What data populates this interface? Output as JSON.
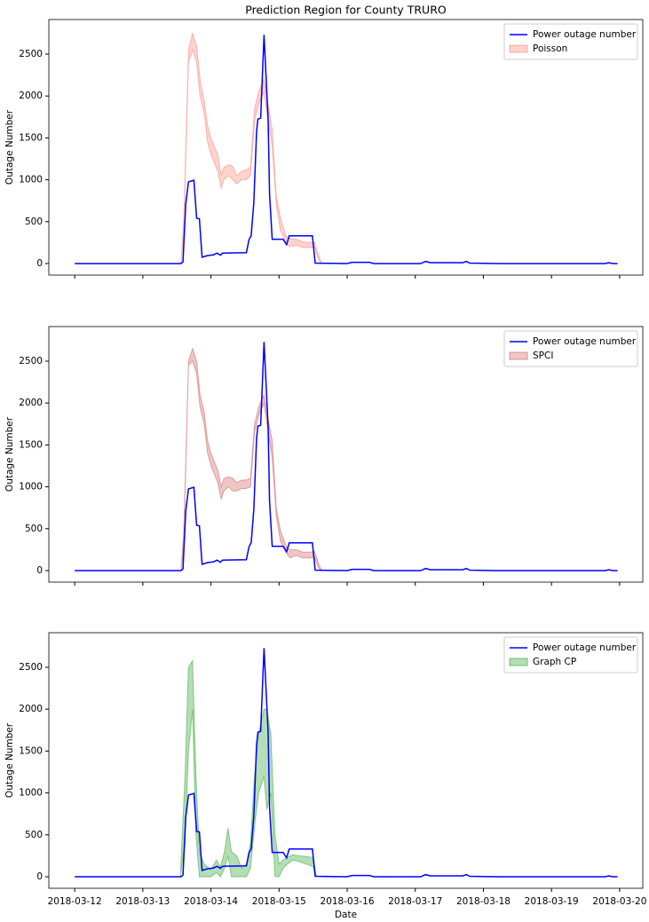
{
  "chart_data": [
    {
      "type": "line",
      "title": "Prediction Region for County TRURO",
      "ylabel": "Outage Number",
      "legend": "upper right",
      "xlim": [
        -0.38,
        8.34
      ],
      "ylim": [
        -138,
        2913
      ],
      "xticks": [
        0,
        1,
        2,
        3,
        4,
        5,
        6,
        7,
        8
      ],
      "yticks": [
        0,
        500,
        1000,
        1500,
        2000,
        2500
      ],
      "series": [
        {
          "name": "Power outage number",
          "color": "#0000ff",
          "x": [
            0,
            1.56,
            1.59,
            1.63,
            1.67,
            1.75,
            1.79,
            1.83,
            1.87,
            1.95,
            2.04,
            2.09,
            2.14,
            2.17,
            2.52,
            2.56,
            2.59,
            2.63,
            2.67,
            2.69,
            2.73,
            2.78,
            2.84,
            2.86,
            2.9,
            3.06,
            3.11,
            3.15,
            3.49,
            3.53,
            4.0,
            4.07,
            4.33,
            4.39,
            5.08,
            5.15,
            5.22,
            5.7,
            5.75,
            5.8,
            6.22,
            7.79,
            7.84,
            7.9,
            7.97
          ],
          "values": [
            0,
            0,
            20,
            710,
            975,
            995,
            540,
            535,
            75,
            95,
            105,
            125,
            100,
            125,
            130,
            290,
            330,
            730,
            1580,
            1725,
            1735,
            2730,
            1720,
            835,
            290,
            290,
            225,
            330,
            330,
            5,
            0,
            15,
            15,
            0,
            0,
            25,
            10,
            10,
            25,
            5,
            0,
            0,
            10,
            0,
            0
          ]
        },
        {
          "name": "Poisson",
          "color": "#fa8072",
          "x": [
            1.56,
            1.6,
            1.67,
            1.73,
            1.79,
            1.84,
            1.9,
            1.95,
            2.0,
            2.05,
            2.1,
            2.15,
            2.19,
            2.26,
            2.32,
            2.38,
            2.45,
            2.52,
            2.58,
            2.64,
            2.7,
            2.78,
            2.84,
            2.9,
            2.96,
            3.02,
            3.1,
            3.16,
            3.25,
            3.35,
            3.45,
            3.52,
            3.58,
            3.62
          ],
          "lower": [
            0,
            300,
            2400,
            2550,
            2400,
            2000,
            1800,
            1450,
            1300,
            1200,
            1100,
            900,
            1000,
            1050,
            1000,
            950,
            1000,
            1000,
            1050,
            1700,
            1900,
            2050,
            1700,
            1400,
            700,
            400,
            250,
            200,
            220,
            190,
            190,
            200,
            50,
            0
          ],
          "upper": [
            0,
            500,
            2550,
            2750,
            2600,
            2200,
            1950,
            1650,
            1500,
            1400,
            1300,
            1050,
            1150,
            1180,
            1160,
            1050,
            1100,
            1120,
            1150,
            1850,
            2050,
            2200,
            1900,
            1600,
            800,
            550,
            330,
            300,
            290,
            260,
            250,
            260,
            100,
            10
          ]
        }
      ]
    },
    {
      "type": "line",
      "ylabel": "Outage Number",
      "legend": "upper right",
      "xlim": [
        -0.38,
        8.34
      ],
      "ylim": [
        -138,
        2913
      ],
      "xticks": [
        0,
        1,
        2,
        3,
        4,
        5,
        6,
        7,
        8
      ],
      "yticks": [
        0,
        500,
        1000,
        1500,
        2000,
        2500
      ],
      "series": [
        {
          "name": "Power outage number",
          "color": "#0000ff",
          "x": [
            0,
            1.56,
            1.59,
            1.63,
            1.67,
            1.75,
            1.79,
            1.83,
            1.87,
            1.95,
            2.04,
            2.09,
            2.14,
            2.17,
            2.52,
            2.56,
            2.59,
            2.63,
            2.67,
            2.69,
            2.73,
            2.78,
            2.84,
            2.86,
            2.9,
            3.06,
            3.11,
            3.15,
            3.49,
            3.53,
            4.0,
            4.07,
            4.33,
            4.39,
            5.08,
            5.15,
            5.22,
            5.7,
            5.75,
            5.8,
            6.22,
            7.79,
            7.84,
            7.9,
            7.97
          ],
          "values": [
            0,
            0,
            20,
            710,
            975,
            995,
            540,
            535,
            75,
            95,
            105,
            125,
            100,
            125,
            130,
            290,
            330,
            730,
            1580,
            1725,
            1735,
            2730,
            1720,
            835,
            290,
            290,
            225,
            330,
            330,
            5,
            0,
            15,
            15,
            0,
            0,
            25,
            10,
            10,
            25,
            5,
            0,
            0,
            10,
            0,
            0
          ]
        },
        {
          "name": "SPCI",
          "color": "#cd5c5c",
          "x": [
            1.56,
            1.6,
            1.67,
            1.73,
            1.79,
            1.84,
            1.9,
            1.95,
            2.0,
            2.05,
            2.1,
            2.15,
            2.19,
            2.26,
            2.32,
            2.38,
            2.45,
            2.52,
            2.58,
            2.64,
            2.7,
            2.78,
            2.84,
            2.9,
            2.96,
            3.02,
            3.1,
            3.16,
            3.25,
            3.35,
            3.45,
            3.52,
            3.58,
            3.62
          ],
          "lower": [
            0,
            250,
            2450,
            2500,
            2350,
            1950,
            1750,
            1400,
            1250,
            1150,
            1050,
            850,
            950,
            1000,
            950,
            950,
            980,
            980,
            1000,
            1650,
            1850,
            2000,
            1650,
            1350,
            650,
            350,
            220,
            150,
            180,
            150,
            150,
            160,
            30,
            0
          ],
          "upper": [
            0,
            450,
            2500,
            2650,
            2500,
            2100,
            1900,
            1550,
            1400,
            1300,
            1200,
            1000,
            1100,
            1120,
            1100,
            1050,
            1080,
            1080,
            1100,
            1750,
            1950,
            2100,
            1800,
            1550,
            750,
            480,
            300,
            250,
            250,
            220,
            220,
            230,
            80,
            5
          ]
        }
      ]
    },
    {
      "type": "line",
      "xlabel": "Date",
      "ylabel": "Outage Number",
      "legend": "upper right",
      "xlim": [
        -0.38,
        8.34
      ],
      "ylim": [
        -138,
        2913
      ],
      "xticks": [
        {
          "value": 0,
          "label": "2018-03-12"
        },
        {
          "value": 1,
          "label": "2018-03-13"
        },
        {
          "value": 2,
          "label": "2018-03-14"
        },
        {
          "value": 3,
          "label": "2018-03-15"
        },
        {
          "value": 4,
          "label": "2018-03-16"
        },
        {
          "value": 5,
          "label": "2018-03-17"
        },
        {
          "value": 6,
          "label": "2018-03-18"
        },
        {
          "value": 7,
          "label": "2018-03-19"
        },
        {
          "value": 8,
          "label": "2018-03-20"
        }
      ],
      "yticks": [
        0,
        500,
        1000,
        1500,
        2000,
        2500
      ],
      "series": [
        {
          "name": "Power outage number",
          "color": "#0000ff",
          "x": [
            0,
            1.56,
            1.59,
            1.63,
            1.67,
            1.75,
            1.79,
            1.83,
            1.87,
            1.95,
            2.04,
            2.09,
            2.14,
            2.17,
            2.52,
            2.56,
            2.59,
            2.63,
            2.67,
            2.69,
            2.73,
            2.78,
            2.84,
            2.86,
            2.9,
            3.06,
            3.11,
            3.15,
            3.49,
            3.53,
            4.0,
            4.07,
            4.33,
            4.39,
            5.08,
            5.15,
            5.22,
            5.7,
            5.75,
            5.8,
            6.22,
            7.79,
            7.84,
            7.9,
            7.97
          ],
          "values": [
            0,
            0,
            20,
            710,
            975,
            995,
            540,
            535,
            75,
            95,
            105,
            125,
            100,
            125,
            130,
            290,
            330,
            730,
            1580,
            1725,
            1735,
            2730,
            1720,
            835,
            290,
            290,
            225,
            330,
            330,
            5,
            0,
            15,
            15,
            0,
            0,
            25,
            10,
            10,
            25,
            5,
            0,
            0,
            10,
            0,
            0
          ]
        },
        {
          "name": "Graph CP",
          "color": "#2ca02c",
          "x": [
            1.55,
            1.62,
            1.67,
            1.73,
            1.78,
            1.83,
            1.9,
            2.0,
            2.08,
            2.14,
            2.2,
            2.25,
            2.3,
            2.38,
            2.45,
            2.52,
            2.58,
            2.64,
            2.7,
            2.78,
            2.82,
            2.88,
            2.94,
            3.0,
            3.06,
            3.12,
            3.2,
            3.3,
            3.4,
            3.5,
            3.55
          ],
          "lower": [
            0,
            400,
            1500,
            2000,
            500,
            0,
            0,
            0,
            50,
            0,
            100,
            250,
            0,
            0,
            0,
            0,
            100,
            600,
            1000,
            1200,
            800,
            1000,
            0,
            0,
            100,
            150,
            200,
            180,
            150,
            120,
            0
          ],
          "upper": [
            0,
            1200,
            2500,
            2580,
            1200,
            300,
            150,
            80,
            200,
            120,
            300,
            580,
            300,
            250,
            100,
            150,
            400,
            1200,
            1700,
            2000,
            2000,
            1700,
            500,
            150,
            200,
            230,
            260,
            250,
            240,
            230,
            0
          ]
        }
      ]
    }
  ]
}
